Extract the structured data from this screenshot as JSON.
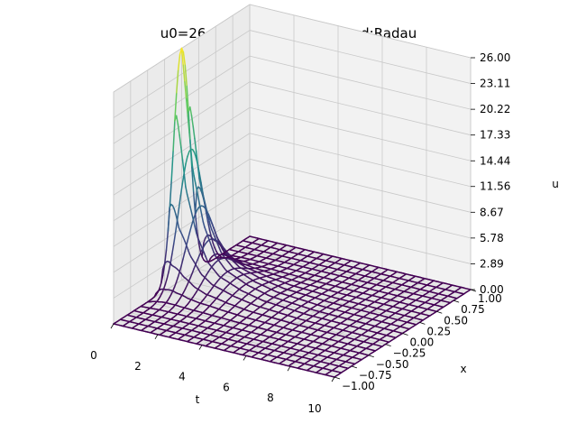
{
  "chart_data": {
    "type": "surface-wireframe-3d",
    "title": "u0=26, N=64, dt=0.1, method:Radau",
    "xlabel": "t",
    "ylabel": "x",
    "zlabel": "u",
    "t_ticks": [
      "0",
      "2",
      "4",
      "6",
      "8",
      "10"
    ],
    "t_tick_values": [
      0,
      2,
      4,
      6,
      8,
      10
    ],
    "x_ticks": [
      "−1.00",
      "−0.75",
      "−0.50",
      "−0.25",
      "0.00",
      "0.25",
      "0.50",
      "0.75",
      "1.00"
    ],
    "x_tick_values": [
      -1.0,
      -0.75,
      -0.5,
      -0.25,
      0.0,
      0.25,
      0.5,
      0.75,
      1.0
    ],
    "u_ticks": [
      "0.00",
      "2.89",
      "5.78",
      "8.67",
      "11.56",
      "14.44",
      "17.33",
      "20.22",
      "23.11",
      "26.00"
    ],
    "u_tick_values": [
      0.0,
      2.89,
      5.78,
      8.67,
      11.56,
      14.44,
      17.33,
      20.22,
      23.11,
      26.0
    ],
    "tlim": [
      0,
      10
    ],
    "xlim": [
      -1,
      1
    ],
    "ulim": [
      0,
      26
    ],
    "grid": true,
    "colormap": "viridis",
    "colormap_stops": [
      "#440154",
      "#3b528b",
      "#21918c",
      "#5ec962",
      "#fde725"
    ],
    "surface": {
      "peak_u": 26.0,
      "peak_at_t": 0.0,
      "peak_at_x": 0.0,
      "u_at_t": [
        {
          "t": 0.0,
          "u_max": 26.0
        },
        {
          "t": 0.5,
          "u_max": 12.7
        },
        {
          "t": 1.0,
          "u_max": 6.8
        },
        {
          "t": 1.5,
          "u_max": 3.7
        },
        {
          "t": 2.0,
          "u_max": 2.3
        },
        {
          "t": 3.0,
          "u_max": 1.2
        },
        {
          "t": 4.0,
          "u_max": 0.6
        },
        {
          "t": 6.0,
          "u_max": 0.2
        },
        {
          "t": 10.0,
          "u_max": 0.0
        }
      ]
    }
  }
}
